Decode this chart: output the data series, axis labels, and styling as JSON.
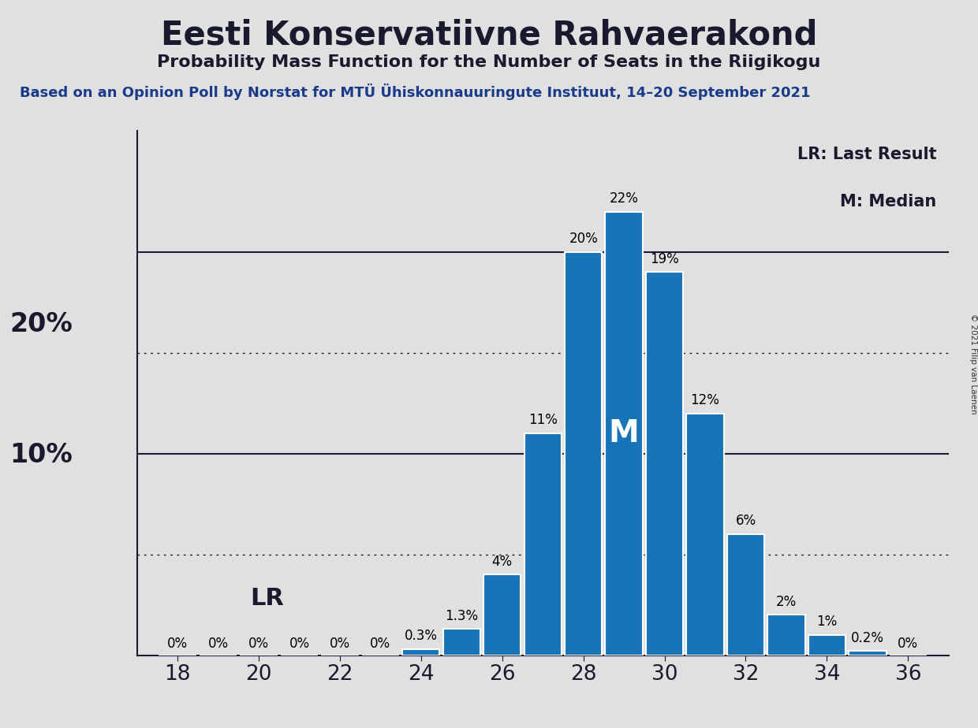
{
  "title": "Eesti Konservatiivne Rahvaerakond",
  "subtitle": "Probability Mass Function for the Number of Seats in the Riigikogu",
  "source_line": "Based on an Opinion Poll by Norstat for MTÜ Ühiskonnauuringute Instituut, 14–20 September 2021",
  "copyright": "© 2021 Filip van Laenen",
  "seats": [
    18,
    19,
    20,
    21,
    22,
    23,
    24,
    25,
    26,
    27,
    28,
    29,
    30,
    31,
    32,
    33,
    34,
    35,
    36
  ],
  "probabilities": [
    0.0,
    0.0,
    0.0,
    0.0,
    0.0,
    0.0,
    0.3,
    1.3,
    4.0,
    11.0,
    20.0,
    22.0,
    19.0,
    12.0,
    6.0,
    2.0,
    1.0,
    0.2,
    0.0
  ],
  "bar_color": "#1874b8",
  "bar_edge_color": "white",
  "background_color": "#e0e0e0",
  "median_seat": 29,
  "last_result_seat": 19,
  "major_yticks": [
    10,
    20
  ],
  "dotted_yticks": [
    5,
    15
  ],
  "xlim": [
    17,
    37
  ],
  "ylim": [
    0,
    26
  ]
}
